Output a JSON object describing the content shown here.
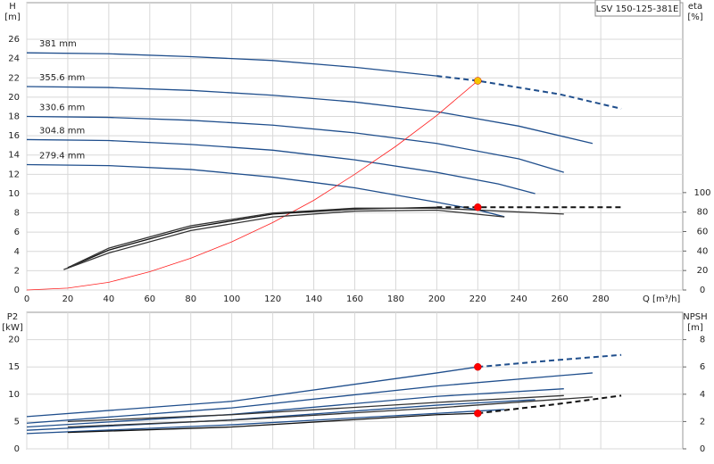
{
  "chart_data": [
    {
      "type": "line",
      "title": "LSV 150-125-381E",
      "y_label": "H",
      "y_unit": "[m]",
      "y2_label": "eta",
      "y2_unit": "[%]",
      "x_label": "Q [m³/h]",
      "xlim": [
        0,
        320
      ],
      "xticks": [
        0,
        20,
        40,
        60,
        80,
        100,
        120,
        140,
        160,
        180,
        200,
        220,
        240,
        260,
        280
      ],
      "ylim": [
        0,
        29.8
      ],
      "yticks": [
        0,
        2,
        4,
        6,
        8,
        10,
        12,
        14,
        16,
        18,
        20,
        22,
        24,
        26
      ],
      "y2lim": [
        0,
        295
      ],
      "y2ticks": [
        0,
        20,
        40,
        60,
        80,
        100
      ],
      "grid": true,
      "series": [
        {
          "name": "381 mm",
          "color": "#1f4e8c",
          "x": [
            0,
            40,
            80,
            120,
            160,
            200
          ],
          "values": [
            24.6,
            24.5,
            24.2,
            23.8,
            23.1,
            22.2
          ]
        },
        {
          "color": "#1f4e8c",
          "dashed": true,
          "x": [
            200,
            220,
            260,
            290
          ],
          "values": [
            22.2,
            21.7,
            20.3,
            18.8
          ]
        },
        {
          "name": "355.6 mm",
          "color": "#1f4e8c",
          "x": [
            0,
            40,
            80,
            120,
            160,
            200,
            240,
            276
          ],
          "values": [
            21.1,
            21.0,
            20.7,
            20.2,
            19.5,
            18.5,
            17.0,
            15.2
          ]
        },
        {
          "name": "330.6 mm",
          "color": "#1f4e8c",
          "x": [
            0,
            40,
            80,
            120,
            160,
            200,
            240,
            262
          ],
          "values": [
            18.0,
            17.9,
            17.6,
            17.1,
            16.3,
            15.2,
            13.6,
            12.2
          ]
        },
        {
          "name": "304.8 mm",
          "color": "#1f4e8c",
          "x": [
            0,
            40,
            80,
            120,
            160,
            200,
            230,
            248
          ],
          "values": [
            15.6,
            15.5,
            15.1,
            14.5,
            13.5,
            12.2,
            11.0,
            10.0
          ]
        },
        {
          "name": "279.4 mm",
          "color": "#1f4e8c",
          "x": [
            0,
            40,
            80,
            120,
            160,
            200,
            220,
            233
          ],
          "values": [
            13.0,
            12.9,
            12.5,
            11.7,
            10.6,
            9.1,
            8.3,
            7.6
          ]
        },
        {
          "color": "#ff2020",
          "thin": true,
          "x": [
            0,
            20,
            40,
            60,
            80,
            100,
            120,
            140,
            160,
            180,
            200,
            220
          ],
          "values": [
            0,
            0.2,
            0.8,
            1.9,
            3.3,
            5.0,
            7.0,
            9.3,
            12.0,
            14.9,
            18.1,
            21.7
          ]
        },
        {
          "color": "#111111",
          "axis": "y2",
          "x": [
            20,
            40,
            80,
            120,
            160,
            200
          ],
          "values": [
            23,
            41,
            64,
            78,
            83,
            85
          ]
        },
        {
          "color": "#111111",
          "axis": "y2",
          "dashed": true,
          "x": [
            200,
            220,
            290
          ],
          "values": [
            85,
            85,
            85
          ]
        },
        {
          "color": "#333333",
          "axis": "y2",
          "x": [
            18,
            40,
            80,
            120,
            160,
            200,
            233
          ],
          "values": [
            21,
            38,
            61,
            75,
            81,
            82,
            75
          ]
        },
        {
          "color": "#333333",
          "axis": "y2",
          "x": [
            22,
            40,
            80,
            120,
            160,
            200,
            262
          ],
          "values": [
            25,
            43,
            66,
            79,
            84,
            84,
            78
          ]
        }
      ],
      "points": [
        {
          "x": 220,
          "y": 21.7,
          "color": "#f5c400"
        },
        {
          "x": 220,
          "y": 85,
          "axis": "y2",
          "color": "#ff0000"
        }
      ]
    },
    {
      "type": "line",
      "y_label": "P2",
      "y_unit": "[kW]",
      "y2_label": "NPSH",
      "y2_unit": "[m]",
      "xlim": [
        0,
        320
      ],
      "xticks": [
        0,
        20,
        40,
        60,
        80,
        100,
        120,
        140,
        160,
        180,
        200,
        220,
        240,
        260,
        280
      ],
      "ylim": [
        0,
        25
      ],
      "yticks": [
        0,
        5,
        10,
        15,
        20
      ],
      "y2lim": [
        0,
        10
      ],
      "y2ticks": [
        0,
        2,
        4,
        6,
        8
      ],
      "grid": true,
      "series": [
        {
          "color": "#1f4e8c",
          "x": [
            0,
            100,
            200,
            220
          ],
          "values": [
            5.9,
            8.7,
            13.9,
            15.0
          ]
        },
        {
          "color": "#1f4e8c",
          "dashed": true,
          "x": [
            220,
            260,
            290
          ],
          "values": [
            15.0,
            16.3,
            17.2
          ]
        },
        {
          "color": "#1f4e8c",
          "x": [
            0,
            100,
            200,
            276
          ],
          "values": [
            4.7,
            7.5,
            11.5,
            13.9
          ]
        },
        {
          "color": "#1f4e8c",
          "x": [
            0,
            100,
            200,
            262
          ],
          "values": [
            4.0,
            6.3,
            9.6,
            11.0
          ]
        },
        {
          "color": "#1f4e8c",
          "x": [
            0,
            100,
            200,
            248
          ],
          "values": [
            3.4,
            5.3,
            8.0,
            9.0
          ]
        },
        {
          "color": "#1f4e8c",
          "x": [
            0,
            100,
            200,
            233
          ],
          "values": [
            2.8,
            4.4,
            6.5,
            7.2
          ]
        },
        {
          "color": "#111111",
          "axis": "y2",
          "x": [
            20,
            100,
            200,
            220
          ],
          "values": [
            1.2,
            1.6,
            2.5,
            2.6
          ]
        },
        {
          "color": "#111111",
          "axis": "y2",
          "dashed": true,
          "x": [
            220,
            260,
            290
          ],
          "values": [
            2.6,
            3.3,
            3.9
          ]
        },
        {
          "color": "#333333",
          "axis": "y2",
          "x": [
            20,
            100,
            200,
            276
          ],
          "values": [
            1.6,
            2.1,
            3.0,
            3.8
          ]
        },
        {
          "color": "#333333",
          "axis": "y2",
          "x": [
            20,
            100,
            200,
            262
          ],
          "values": [
            2.0,
            2.5,
            3.4,
            3.9
          ]
        }
      ],
      "points": [
        {
          "x": 220,
          "y": 15.0,
          "color": "#ff0000"
        },
        {
          "x": 220,
          "y": 2.6,
          "axis": "y2",
          "color": "#ff0000"
        }
      ]
    }
  ]
}
